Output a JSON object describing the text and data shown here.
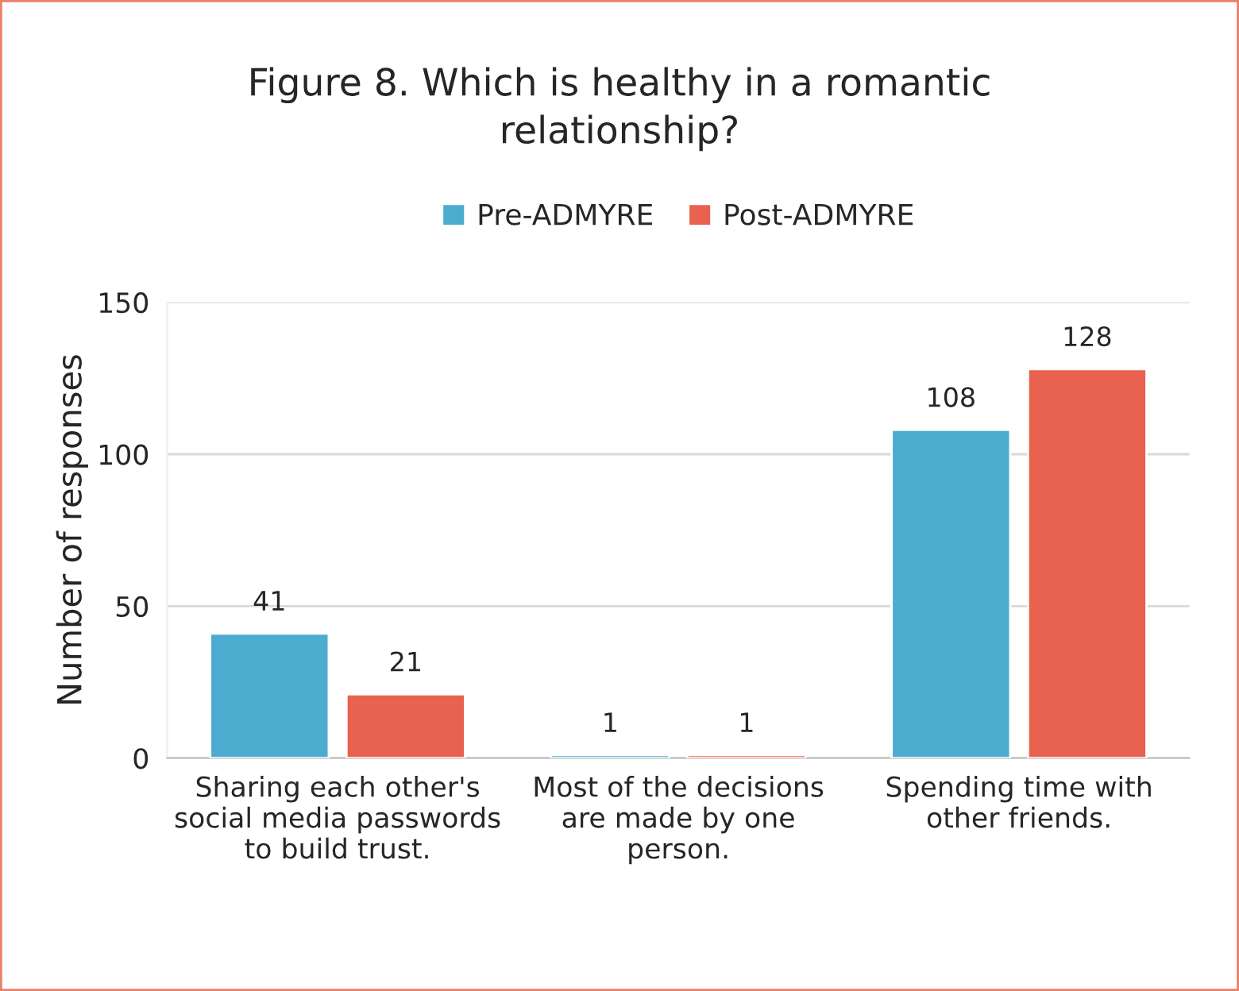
{
  "chart_data": {
    "type": "bar",
    "title": "Figure 8. Which is healthy in a romantic relationship?",
    "ylabel": "Number of responses",
    "categories": [
      "Sharing each other's social media passwords to build trust.",
      "Most of the decisions are made by one person.",
      "Spending time with other friends."
    ],
    "series": [
      {
        "name": "Pre-ADMYRE",
        "color": "#4bacd0",
        "values": [
          41,
          1,
          108
        ]
      },
      {
        "name": "Post-ADMYRE",
        "color": "#e8624f",
        "values": [
          21,
          1,
          128
        ]
      }
    ],
    "ylim": [
      0,
      150
    ],
    "yticks": [
      0,
      50,
      100,
      150
    ],
    "grid": "y",
    "legend": "top",
    "data_labels": true
  }
}
